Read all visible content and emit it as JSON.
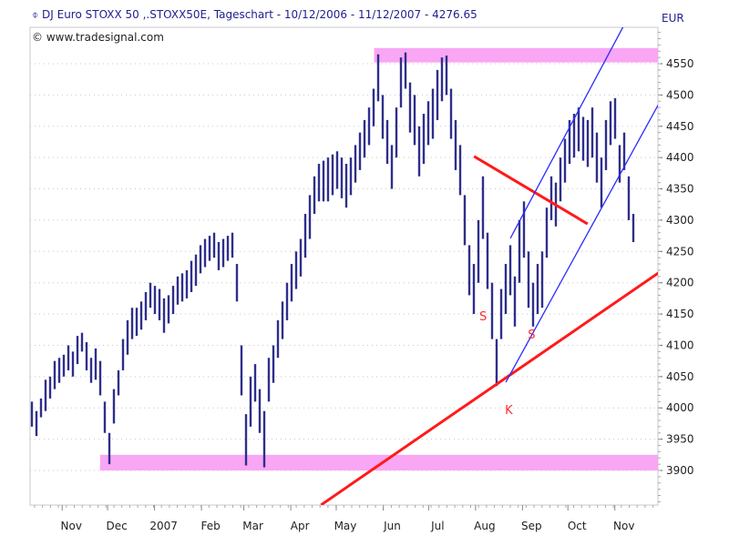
{
  "header": {
    "title": "DJ Euro STOXX 50 ,.STOXX50E, Tageschart - 10/12/2006 - 11/12/2007 - 4276.65",
    "copyright": "© www.tradesignal.com",
    "unit": "EUR"
  },
  "chart_data": {
    "type": "bar",
    "subtype": "ohlc-daily-range",
    "title": "DJ Euro STOXX 50 ,.STOXX50E, Tageschart - 10/12/2006 - 11/12/2007 - 4276.65",
    "start_date": "2006-10-12",
    "end_date": "2007-11-12",
    "last_value": 4276.65,
    "ylim": [
      3845,
      4608
    ],
    "y_axis_position": "right",
    "y_ticks": [
      3900,
      3950,
      4000,
      4050,
      4100,
      4150,
      4200,
      4250,
      4300,
      4350,
      4400,
      4450,
      4500,
      4550
    ],
    "x_ticks": [
      {
        "label": "Nov",
        "date": "2006-11-01"
      },
      {
        "label": "Dec",
        "date": "2006-12-01"
      },
      {
        "label": "2007",
        "date": "2007-01-01"
      },
      {
        "label": "Feb",
        "date": "2007-02-01"
      },
      {
        "label": "Mar",
        "date": "2007-03-01"
      },
      {
        "label": "Apr",
        "date": "2007-04-01"
      },
      {
        "label": "May",
        "date": "2007-05-01"
      },
      {
        "label": "Jun",
        "date": "2007-06-01"
      },
      {
        "label": "Jul",
        "date": "2007-07-01"
      },
      {
        "label": "Aug",
        "date": "2007-08-01"
      },
      {
        "label": "Sep",
        "date": "2007-09-01"
      },
      {
        "label": "Oct",
        "date": "2007-10-01"
      },
      {
        "label": "Nov",
        "date": "2007-11-01"
      }
    ],
    "grid": true,
    "colors": {
      "bars": "#2e2e8c",
      "zones": "#f9a6f4",
      "trend_red": "#ff1a1a",
      "channel_blue": "#2a2aff",
      "grid": "#c8c8c8"
    },
    "bars_low_high": [
      [
        3970,
        4010
      ],
      [
        3955,
        3995
      ],
      [
        3985,
        4015
      ],
      [
        3995,
        4045
      ],
      [
        4015,
        4050
      ],
      [
        4030,
        4075
      ],
      [
        4040,
        4080
      ],
      [
        4050,
        4085
      ],
      [
        4060,
        4100
      ],
      [
        4050,
        4090
      ],
      [
        4070,
        4115
      ],
      [
        4090,
        4120
      ],
      [
        4060,
        4105
      ],
      [
        4040,
        4080
      ],
      [
        4045,
        4095
      ],
      [
        4020,
        4075
      ],
      [
        3960,
        4010
      ],
      [
        3910,
        3960
      ],
      [
        3975,
        4030
      ],
      [
        4020,
        4060
      ],
      [
        4060,
        4110
      ],
      [
        4085,
        4140
      ],
      [
        4110,
        4160
      ],
      [
        4115,
        4160
      ],
      [
        4125,
        4170
      ],
      [
        4140,
        4185
      ],
      [
        4160,
        4200
      ],
      [
        4150,
        4195
      ],
      [
        4140,
        4190
      ],
      [
        4120,
        4175
      ],
      [
        4135,
        4180
      ],
      [
        4150,
        4195
      ],
      [
        4165,
        4210
      ],
      [
        4170,
        4215
      ],
      [
        4175,
        4220
      ],
      [
        4185,
        4235
      ],
      [
        4195,
        4245
      ],
      [
        4215,
        4260
      ],
      [
        4225,
        4270
      ],
      [
        4235,
        4275
      ],
      [
        4240,
        4280
      ],
      [
        4220,
        4265
      ],
      [
        4225,
        4270
      ],
      [
        4235,
        4275
      ],
      [
        4240,
        4280
      ],
      [
        4170,
        4230
      ],
      [
        4020,
        4100
      ],
      [
        3908,
        3990
      ],
      [
        3970,
        4050
      ],
      [
        4010,
        4070
      ],
      [
        3960,
        4030
      ],
      [
        3905,
        3995
      ],
      [
        4010,
        4080
      ],
      [
        4040,
        4100
      ],
      [
        4080,
        4140
      ],
      [
        4110,
        4170
      ],
      [
        4140,
        4200
      ],
      [
        4170,
        4230
      ],
      [
        4190,
        4250
      ],
      [
        4210,
        4270
      ],
      [
        4240,
        4310
      ],
      [
        4270,
        4340
      ],
      [
        4310,
        4370
      ],
      [
        4330,
        4390
      ],
      [
        4330,
        4395
      ],
      [
        4330,
        4400
      ],
      [
        4340,
        4405
      ],
      [
        4350,
        4410
      ],
      [
        4335,
        4400
      ],
      [
        4320,
        4390
      ],
      [
        4340,
        4400
      ],
      [
        4360,
        4420
      ],
      [
        4380,
        4440
      ],
      [
        4400,
        4460
      ],
      [
        4420,
        4480
      ],
      [
        4450,
        4510
      ],
      [
        4490,
        4565
      ],
      [
        4430,
        4500
      ],
      [
        4390,
        4460
      ],
      [
        4350,
        4420
      ],
      [
        4400,
        4480
      ],
      [
        4480,
        4560
      ],
      [
        4510,
        4568
      ],
      [
        4440,
        4520
      ],
      [
        4420,
        4500
      ],
      [
        4370,
        4450
      ],
      [
        4390,
        4470
      ],
      [
        4420,
        4490
      ],
      [
        4430,
        4510
      ],
      [
        4460,
        4540
      ],
      [
        4490,
        4560
      ],
      [
        4500,
        4563
      ],
      [
        4430,
        4510
      ],
      [
        4380,
        4460
      ],
      [
        4340,
        4420
      ],
      [
        4260,
        4340
      ],
      [
        4180,
        4260
      ],
      [
        4150,
        4230
      ],
      [
        4200,
        4300
      ],
      [
        4270,
        4370
      ],
      [
        4190,
        4280
      ],
      [
        4110,
        4200
      ],
      [
        4035,
        4110
      ],
      [
        4110,
        4190
      ],
      [
        4150,
        4230
      ],
      [
        4180,
        4260
      ],
      [
        4130,
        4210
      ],
      [
        4200,
        4300
      ],
      [
        4240,
        4330
      ],
      [
        4160,
        4250
      ],
      [
        4130,
        4200
      ],
      [
        4150,
        4230
      ],
      [
        4160,
        4250
      ],
      [
        4240,
        4320
      ],
      [
        4300,
        4370
      ],
      [
        4290,
        4360
      ],
      [
        4330,
        4400
      ],
      [
        4360,
        4430
      ],
      [
        4390,
        4460
      ],
      [
        4400,
        4470
      ],
      [
        4410,
        4480
      ],
      [
        4395,
        4465
      ],
      [
        4385,
        4460
      ],
      [
        4400,
        4480
      ],
      [
        4360,
        4440
      ],
      [
        4320,
        4400
      ],
      [
        4380,
        4460
      ],
      [
        4420,
        4490
      ],
      [
        4430,
        4495
      ],
      [
        4360,
        4420
      ],
      [
        4380,
        4440
      ],
      [
        4300,
        4370
      ],
      [
        4265,
        4310
      ]
    ],
    "zones": [
      {
        "from_date": "2007-05-26",
        "low": 4552,
        "high": 4575
      },
      {
        "from_date": "2006-11-26",
        "low": 3900,
        "high": 3925
      }
    ],
    "lines": [
      {
        "color": "red",
        "from": {
          "date": "2007-04-21",
          "price": 3845
        },
        "to": {
          "date": "2007-12-03",
          "price": 4221
        }
      },
      {
        "color": "red",
        "from": {
          "date": "2007-07-31",
          "price": 4402
        },
        "to": {
          "date": "2007-10-14",
          "price": 4294
        }
      },
      {
        "color": "blue",
        "from": {
          "date": "2007-08-21",
          "price": 4041
        },
        "to": {
          "date": "2007-12-03",
          "price": 4499
        }
      },
      {
        "color": "blue",
        "from": {
          "date": "2007-08-24",
          "price": 4271
        },
        "to": {
          "date": "2007-11-12",
          "price": 4634
        }
      }
    ],
    "annotations": [
      {
        "text": "S",
        "date": "2007-08-06",
        "price": 4140
      },
      {
        "text": "S",
        "date": "2007-09-07",
        "price": 4111
      },
      {
        "text": "K",
        "date": "2007-08-23",
        "price": 3990
      }
    ]
  }
}
